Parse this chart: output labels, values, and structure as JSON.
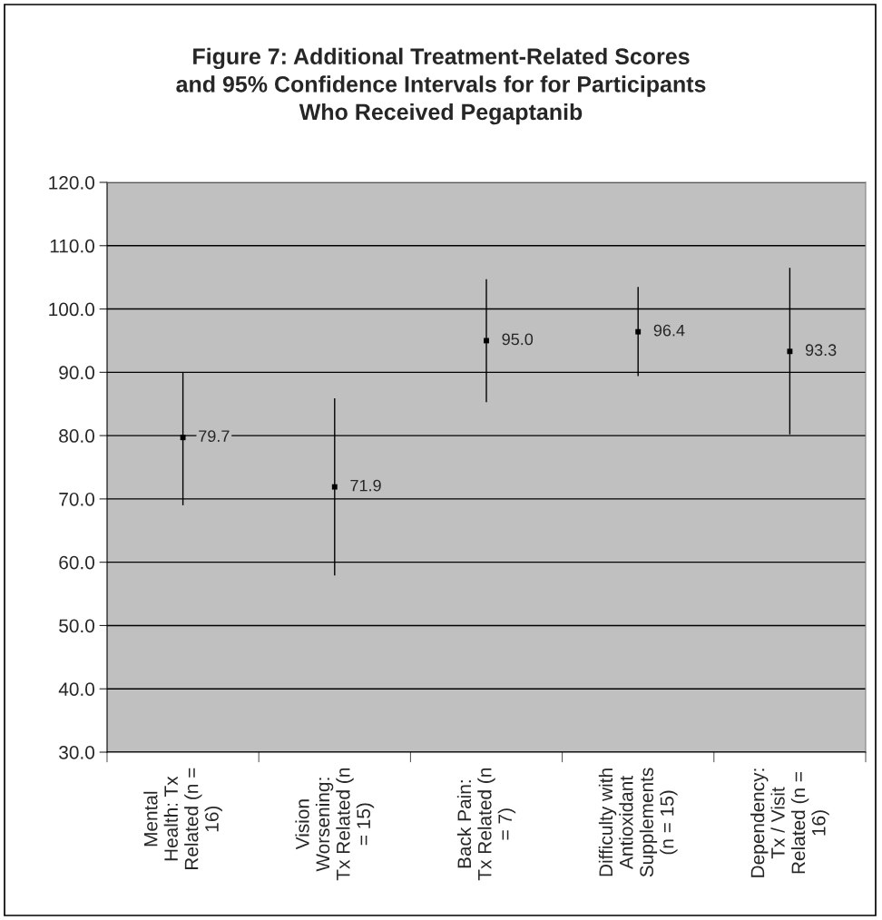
{
  "chart_data": {
    "type": "scatter",
    "title": "Figure 7: Additional Treatment-Related Scores\nand 95% Confidence Intervals for for Participants\nWho Received Pegaptanib",
    "categories": [
      "Mental\nHealth: Tx\nRelated (n =\n16)",
      "Vision\nWorsening:\nTx Related (n\n= 15)",
      "Back Pain:\nTx Related (n\n= 7)",
      "Difficulty with\nAntioxidant\nSupplements\n(n = 15)",
      "Dependency:\nTx / Visit\nRelated (n =\n16)"
    ],
    "values": [
      79.7,
      71.9,
      95.0,
      96.4,
      93.3
    ],
    "value_labels": [
      "79.7",
      "71.9",
      "95.0",
      "96.4",
      "93.3"
    ],
    "errors": [
      [
        69.0,
        90.0
      ],
      [
        57.9,
        85.9
      ],
      [
        85.3,
        104.7
      ],
      [
        89.4,
        103.5
      ],
      [
        80.2,
        106.5
      ]
    ],
    "color": "#000000",
    "marker": "square",
    "ylim": [
      30,
      120
    ],
    "yticks": [
      {
        "value": 30,
        "label": "30.0"
      },
      {
        "value": 40,
        "label": "40.0"
      },
      {
        "value": 50,
        "label": "50.0"
      },
      {
        "value": 60,
        "label": "60.0"
      },
      {
        "value": 70,
        "label": "70.0"
      },
      {
        "value": 80,
        "label": "80.0"
      },
      {
        "value": 90,
        "label": "90.0"
      },
      {
        "value": 100,
        "label": "100.0"
      },
      {
        "value": 110,
        "label": "110.0"
      },
      {
        "value": 120,
        "label": "120.0"
      }
    ],
    "grid": "y"
  }
}
